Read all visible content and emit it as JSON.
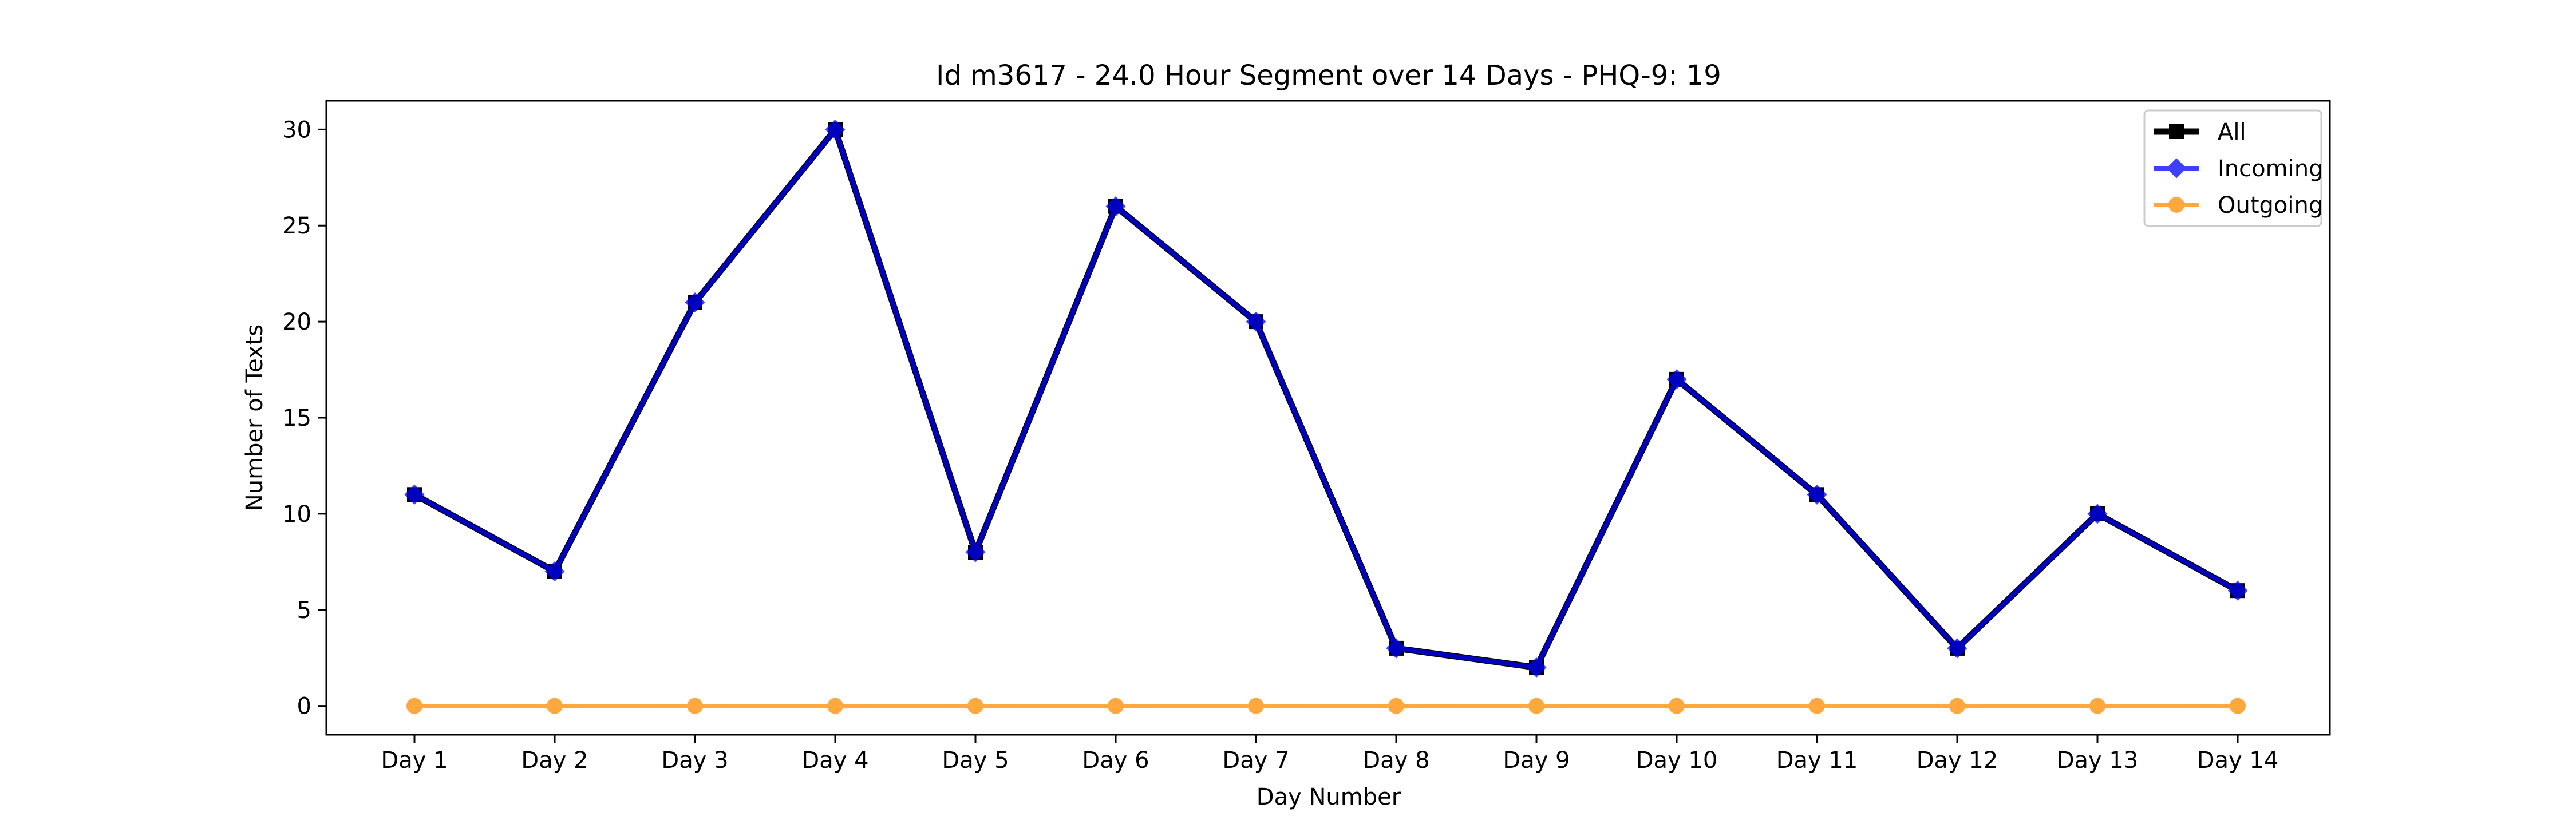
{
  "chart_data": {
    "type": "line",
    "title": "Id m3617 - 24.0 Hour Segment over 14 Days - PHQ-9: 19",
    "xlabel": "Day Number",
    "ylabel": "Number of Texts",
    "categories": [
      "Day 1",
      "Day 2",
      "Day 3",
      "Day 4",
      "Day 5",
      "Day 6",
      "Day 7",
      "Day 8",
      "Day 9",
      "Day 10",
      "Day 11",
      "Day 12",
      "Day 13",
      "Day 14"
    ],
    "ylim": [
      -1.5,
      31.5
    ],
    "yticks": [
      0,
      5,
      10,
      15,
      20,
      25,
      30
    ],
    "grid": false,
    "legend_position": "top-right",
    "series": [
      {
        "name": "All",
        "color": "#000000",
        "marker": "square",
        "values": [
          11,
          7,
          21,
          30,
          8,
          26,
          20,
          3,
          2,
          17,
          11,
          3,
          10,
          6
        ]
      },
      {
        "name": "Incoming",
        "color": "#0000ff",
        "marker": "diamond",
        "values": [
          11,
          7,
          21,
          30,
          8,
          26,
          20,
          3,
          2,
          17,
          11,
          3,
          10,
          6
        ]
      },
      {
        "name": "Outgoing",
        "color": "#ff8c00",
        "marker": "circle",
        "values": [
          0,
          0,
          0,
          0,
          0,
          0,
          0,
          0,
          0,
          0,
          0,
          0,
          0,
          0
        ]
      }
    ]
  }
}
